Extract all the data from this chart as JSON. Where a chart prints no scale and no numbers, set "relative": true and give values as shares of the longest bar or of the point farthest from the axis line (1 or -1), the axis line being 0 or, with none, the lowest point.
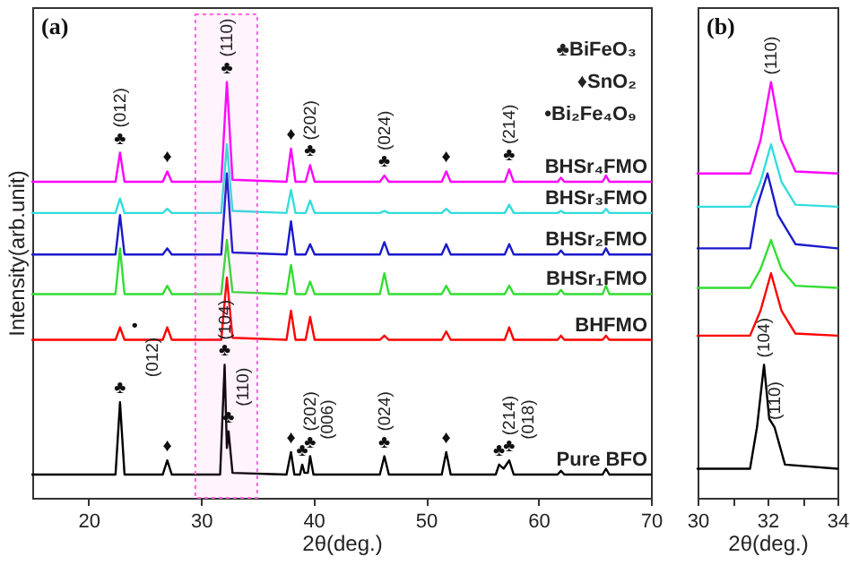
{
  "chart_data": [
    {
      "type": "line",
      "title": "(a)",
      "xlabel": "2θ(deg.)",
      "ylabel": "Intensity(arb.unit)",
      "relative": true,
      "xlim": [
        15,
        70
      ],
      "xticks": [
        20,
        30,
        40,
        50,
        60,
        70
      ],
      "grid": false,
      "legend": false,
      "bands": [
        {
          "axis": "x",
          "from": 29.5,
          "to": 35,
          "color": "#ff66dd"
        }
      ],
      "series": [
        {
          "name": "BHSr₄FMO",
          "color": "#ff00ff",
          "x": [
            15,
            22.4,
            22.8,
            23.2,
            26.6,
            27,
            27.4,
            31.8,
            32.3,
            32.8,
            37.6,
            38,
            38.4,
            39.3,
            39.7,
            40.1,
            45.9,
            46.3,
            46.7,
            51.4,
            51.8,
            52.2,
            57.0,
            57.4,
            57.8,
            61.7,
            62,
            62.3,
            65.7,
            66,
            66.3,
            70
          ],
          "values": [
            0.76,
            0.76,
            0.83,
            0.76,
            0.76,
            0.785,
            0.76,
            0.76,
            1.0,
            0.765,
            0.76,
            0.84,
            0.76,
            0.76,
            0.8,
            0.76,
            0.76,
            0.775,
            0.76,
            0.76,
            0.785,
            0.76,
            0.76,
            0.79,
            0.76,
            0.76,
            0.77,
            0.76,
            0.76,
            0.775,
            0.76,
            0.76
          ]
        },
        {
          "name": "BHSr₃FMO",
          "color": "#33dddd",
          "x": [
            15,
            22.4,
            22.8,
            23.2,
            26.6,
            27,
            27.4,
            31.8,
            32.3,
            32.8,
            37.6,
            38,
            38.4,
            39.3,
            39.7,
            40.1,
            45.9,
            46.3,
            46.7,
            51.4,
            51.8,
            52.2,
            57.0,
            57.4,
            57.8,
            61.7,
            62,
            62.3,
            65.7,
            66,
            66.3,
            70
          ],
          "values": [
            0.685,
            0.685,
            0.72,
            0.685,
            0.685,
            0.695,
            0.685,
            0.685,
            0.85,
            0.69,
            0.685,
            0.74,
            0.685,
            0.685,
            0.715,
            0.685,
            0.685,
            0.69,
            0.685,
            0.685,
            0.695,
            0.685,
            0.685,
            0.705,
            0.685,
            0.685,
            0.69,
            0.685,
            0.685,
            0.695,
            0.685,
            0.685
          ]
        },
        {
          "name": "BHSr₂FMO",
          "color": "#1a1acc",
          "x": [
            15,
            22.4,
            22.8,
            23.2,
            26.6,
            27,
            27.4,
            31.8,
            32.3,
            32.8,
            37.6,
            38,
            38.4,
            39.3,
            39.7,
            40.1,
            45.9,
            46.3,
            46.7,
            51.4,
            51.8,
            52.2,
            57.0,
            57.4,
            57.8,
            61.7,
            62,
            62.3,
            65.7,
            66,
            66.3,
            70
          ],
          "values": [
            0.585,
            0.585,
            0.68,
            0.585,
            0.585,
            0.6,
            0.585,
            0.585,
            0.78,
            0.59,
            0.585,
            0.665,
            0.585,
            0.585,
            0.61,
            0.585,
            0.585,
            0.615,
            0.585,
            0.585,
            0.61,
            0.585,
            0.585,
            0.61,
            0.585,
            0.585,
            0.595,
            0.585,
            0.585,
            0.6,
            0.585,
            0.585
          ]
        },
        {
          "name": "BHSr₁FMO",
          "color": "#33dd33",
          "x": [
            15,
            22.4,
            22.8,
            23.2,
            26.6,
            27,
            27.4,
            31.8,
            32.3,
            32.8,
            37.6,
            38,
            38.4,
            39.3,
            39.7,
            40.1,
            45.9,
            46.3,
            46.7,
            51.4,
            51.8,
            52.2,
            57.0,
            57.4,
            57.8,
            61.7,
            62,
            62.3,
            65.7,
            66,
            66.3,
            70
          ],
          "values": [
            0.49,
            0.49,
            0.6,
            0.49,
            0.49,
            0.51,
            0.49,
            0.49,
            0.62,
            0.495,
            0.49,
            0.56,
            0.49,
            0.49,
            0.52,
            0.49,
            0.49,
            0.54,
            0.49,
            0.49,
            0.51,
            0.49,
            0.49,
            0.51,
            0.49,
            0.49,
            0.5,
            0.49,
            0.49,
            0.51,
            0.49,
            0.49
          ]
        },
        {
          "name": "BHFMO",
          "color": "#ff0000",
          "x": [
            15,
            22.4,
            22.8,
            23.2,
            24.1,
            26.6,
            27,
            27.4,
            31.8,
            32.3,
            32.8,
            37.6,
            38,
            38.4,
            39.3,
            39.7,
            40.1,
            45.9,
            46.3,
            46.7,
            51.4,
            51.8,
            52.2,
            57.0,
            57.4,
            57.8,
            61.7,
            62,
            62.3,
            65.7,
            66,
            66.3,
            70
          ],
          "values": [
            0.38,
            0.38,
            0.41,
            0.38,
            0.38,
            0.38,
            0.41,
            0.38,
            0.38,
            0.53,
            0.385,
            0.38,
            0.45,
            0.38,
            0.38,
            0.435,
            0.38,
            0.38,
            0.39,
            0.38,
            0.38,
            0.4,
            0.38,
            0.38,
            0.41,
            0.38,
            0.38,
            0.39,
            0.38,
            0.38,
            0.39,
            0.38,
            0.38
          ]
        },
        {
          "name": "Pure BFO",
          "color": "#000000",
          "x": [
            15,
            22.4,
            22.8,
            23.2,
            26.6,
            27,
            27.4,
            31.7,
            32.1,
            32.3,
            32.45,
            32.8,
            37.6,
            38,
            38.3,
            38.8,
            39.0,
            39.2,
            39.5,
            39.7,
            40.0,
            45.9,
            46.3,
            46.7,
            51.4,
            51.8,
            52.2,
            56.2,
            56.5,
            56.9,
            57.4,
            57.8,
            61.7,
            62,
            62.3,
            65.7,
            66,
            66.3,
            70
          ],
          "values": [
            0.056,
            0.056,
            0.23,
            0.056,
            0.056,
            0.09,
            0.056,
            0.056,
            0.32,
            0.12,
            0.16,
            0.06,
            0.056,
            0.11,
            0.056,
            0.056,
            0.08,
            0.06,
            0.06,
            0.1,
            0.056,
            0.056,
            0.1,
            0.056,
            0.056,
            0.11,
            0.056,
            0.056,
            0.08,
            0.07,
            0.09,
            0.056,
            0.056,
            0.065,
            0.056,
            0.056,
            0.07,
            0.056,
            0.056
          ]
        }
      ],
      "annotations": [
        "♣BiFeO₃",
        "♦SnO₂",
        "•Bi₂Fe₄O₉",
        {
          "text": "♣",
          "x": 22.8,
          "y": 0.83
        },
        {
          "text": "(012)",
          "x": 22.8,
          "y": 0.83
        },
        {
          "text": "♦",
          "x": 27,
          "y": 0.785
        },
        {
          "text": "♣",
          "x": 32.3,
          "y": 1.0
        },
        {
          "text": "(110)",
          "x": 32.3,
          "y": 1.0
        },
        {
          "text": "♦",
          "x": 38,
          "y": 0.84
        },
        {
          "text": "♣",
          "x": 39.7,
          "y": 0.8
        },
        {
          "text": "(202)",
          "x": 39.7,
          "y": 0.8
        },
        {
          "text": "♣",
          "x": 46.3,
          "y": 0.775
        },
        {
          "text": "(024)",
          "x": 46.3,
          "y": 0.775
        },
        {
          "text": "♦",
          "x": 51.8,
          "y": 0.785
        },
        {
          "text": "♣",
          "x": 57.4,
          "y": 0.79
        },
        {
          "text": "(214)",
          "x": 57.4,
          "y": 0.79
        },
        {
          "text": "•",
          "x": 24.1,
          "y": 0.38
        },
        {
          "text": "♣",
          "x": 22.8,
          "y": 0.23
        },
        {
          "text": "(012)",
          "x": 22.8,
          "y": 0.23
        },
        {
          "text": "♦",
          "x": 27,
          "y": 0.09
        },
        {
          "text": "♣",
          "x": 32.1,
          "y": 0.32
        },
        {
          "text": "(104)",
          "x": 32.1,
          "y": 0.32
        },
        {
          "text": "♣",
          "x": 32.45,
          "y": 0.16
        },
        {
          "text": "(110)",
          "x": 32.45,
          "y": 0.16
        },
        {
          "text": "♦",
          "x": 38,
          "y": 0.11
        },
        {
          "text": "♣",
          "x": 39.0,
          "y": 0.08
        },
        {
          "text": "(006)",
          "x": 39.0,
          "y": 0.08
        },
        {
          "text": "♣",
          "x": 39.7,
          "y": 0.1
        },
        {
          "text": "(202)",
          "x": 39.7,
          "y": 0.1
        },
        {
          "text": "♣",
          "x": 46.3,
          "y": 0.1
        },
        {
          "text": "(024)",
          "x": 46.3,
          "y": 0.1
        },
        {
          "text": "♦",
          "x": 51.8,
          "y": 0.11
        },
        {
          "text": "♣",
          "x": 56.5,
          "y": 0.08
        },
        {
          "text": "(018)",
          "x": 56.5,
          "y": 0.08
        },
        {
          "text": "♣",
          "x": 57.4,
          "y": 0.09
        },
        {
          "text": "(214)",
          "x": 57.4,
          "y": 0.09
        }
      ]
    },
    {
      "type": "line",
      "title": "(b)",
      "xlabel": "2θ(deg.)",
      "relative": true,
      "xlim": [
        30,
        34
      ],
      "xticks": [
        30,
        {
          "value": 31,
          "label": null
        },
        32,
        {
          "value": 33,
          "label": null
        },
        34
      ],
      "grid": false,
      "legend": false,
      "series": [
        {
          "color": "#ff00ff",
          "x": [
            30,
            31.5,
            31.8,
            32.1,
            32.4,
            32.8,
            34
          ],
          "values": [
            0.78,
            0.78,
            0.86,
            1.0,
            0.86,
            0.785,
            0.78
          ]
        },
        {
          "color": "#33dddd",
          "x": [
            30,
            31.5,
            31.8,
            32.1,
            32.4,
            32.8,
            34
          ],
          "values": [
            0.7,
            0.7,
            0.76,
            0.85,
            0.76,
            0.705,
            0.7
          ]
        },
        {
          "color": "#1a1acc",
          "x": [
            30,
            31.5,
            31.7,
            32.0,
            32.3,
            32.8,
            34
          ],
          "values": [
            0.6,
            0.6,
            0.7,
            0.78,
            0.68,
            0.61,
            0.6
          ]
        },
        {
          "color": "#33dd33",
          "x": [
            30,
            31.5,
            31.8,
            32.1,
            32.4,
            32.8,
            34
          ],
          "values": [
            0.505,
            0.505,
            0.55,
            0.62,
            0.55,
            0.51,
            0.505
          ]
        },
        {
          "color": "#ff0000",
          "x": [
            30,
            31.5,
            31.8,
            32.1,
            32.4,
            32.8,
            34
          ],
          "values": [
            0.39,
            0.39,
            0.45,
            0.54,
            0.45,
            0.395,
            0.39
          ]
        },
        {
          "color": "#000000",
          "x": [
            30,
            31.5,
            31.7,
            31.9,
            32.05,
            32.2,
            32.5,
            34
          ],
          "values": [
            0.07,
            0.07,
            0.17,
            0.32,
            0.19,
            0.17,
            0.08,
            0.07
          ]
        }
      ],
      "annotations": [
        {
          "text": "(110)",
          "x": 32.1,
          "y": 1.0
        },
        {
          "text": "(104)",
          "x": 31.9,
          "y": 0.32
        },
        {
          "text": "(110)",
          "x": 32.2,
          "y": 0.17
        }
      ]
    }
  ]
}
